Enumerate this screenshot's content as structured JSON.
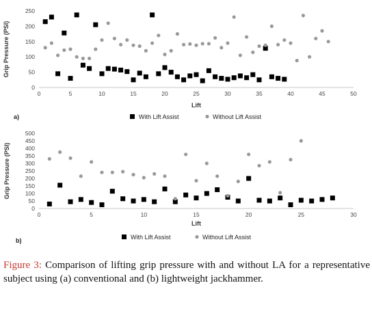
{
  "caption": {
    "title": "Figure 3:",
    "text": "Comparison of lifting grip pressure with and without LA for a representative subject using (a) conventional and (b) lightweight jackhammer."
  },
  "chart_data": [
    {
      "type": "scatter",
      "panel_label": "a)",
      "xlabel": "Lift",
      "ylabel": "Grip Pressure (PSI)",
      "xlim": [
        0,
        50
      ],
      "ylim": [
        0,
        250
      ],
      "xticks": [
        0,
        5,
        10,
        15,
        20,
        25,
        30,
        35,
        40,
        45,
        50
      ],
      "yticks": [
        0,
        50,
        100,
        150,
        200,
        250
      ],
      "grid": false,
      "legend_position": "bottom",
      "series": [
        {
          "name": "With Lift Assist",
          "color": "#000000",
          "marker": "square",
          "x": [
            1,
            2,
            3,
            4,
            5,
            6,
            7,
            8,
            9,
            10,
            11,
            12,
            13,
            14,
            15,
            16,
            17,
            18,
            19,
            20,
            21,
            22,
            23,
            24,
            25,
            26,
            27,
            28,
            29,
            30,
            31,
            32,
            33,
            34,
            35,
            36,
            37,
            38,
            39
          ],
          "y": [
            215,
            230,
            45,
            178,
            30,
            237,
            73,
            62,
            205,
            45,
            62,
            60,
            57,
            52,
            25,
            47,
            35,
            237,
            45,
            65,
            50,
            35,
            25,
            38,
            42,
            22,
            55,
            35,
            30,
            27,
            32,
            38,
            32,
            42,
            25,
            128,
            35,
            30,
            27
          ]
        },
        {
          "name": "Without Lift Assist",
          "color": "#999999",
          "marker": "circle",
          "x": [
            1,
            2,
            3,
            4,
            5,
            6,
            7,
            8,
            9,
            10,
            11,
            12,
            13,
            14,
            15,
            16,
            17,
            18,
            19,
            20,
            21,
            22,
            23,
            24,
            25,
            26,
            27,
            28,
            29,
            30,
            31,
            32,
            33,
            34,
            35,
            36,
            37,
            38,
            39,
            40,
            41,
            42,
            43,
            44,
            45,
            46
          ],
          "y": [
            130,
            145,
            105,
            122,
            125,
            100,
            95,
            95,
            125,
            155,
            210,
            160,
            140,
            155,
            138,
            135,
            120,
            145,
            170,
            108,
            120,
            175,
            140,
            142,
            138,
            143,
            143,
            162,
            130,
            145,
            230,
            105,
            165,
            115,
            135,
            138,
            200,
            140,
            155,
            145,
            88,
            235,
            100,
            160,
            185,
            150
          ]
        }
      ]
    },
    {
      "type": "scatter",
      "panel_label": "b)",
      "xlabel": "Lift",
      "ylabel": "Grip Pressure (PSI)",
      "xlim": [
        0,
        30
      ],
      "ylim": [
        0,
        500
      ],
      "xticks": [
        0,
        5,
        10,
        15,
        20,
        25,
        30
      ],
      "yticks": [
        0,
        50,
        100,
        150,
        200,
        250,
        300,
        350,
        400,
        450,
        500
      ],
      "grid": false,
      "legend_position": "bottom",
      "series": [
        {
          "name": "With Lift Assist",
          "color": "#000000",
          "marker": "square",
          "x": [
            1,
            2,
            3,
            4,
            5,
            6,
            7,
            8,
            9,
            10,
            11,
            12,
            13,
            14,
            15,
            16,
            17,
            18,
            19,
            20,
            21,
            22,
            23,
            24,
            25,
            26,
            27,
            28
          ],
          "y": [
            30,
            155,
            45,
            60,
            40,
            25,
            115,
            65,
            50,
            60,
            45,
            130,
            45,
            90,
            70,
            100,
            125,
            75,
            50,
            200,
            55,
            50,
            70,
            25,
            55,
            50,
            60,
            70
          ]
        },
        {
          "name": "Without Lift Assist",
          "color": "#999999",
          "marker": "circle",
          "x": [
            1,
            2,
            3,
            4,
            5,
            6,
            7,
            8,
            9,
            10,
            11,
            12,
            13,
            14,
            15,
            16,
            17,
            18,
            19,
            20,
            21,
            22,
            23,
            24,
            25
          ],
          "y": [
            330,
            375,
            335,
            215,
            310,
            240,
            240,
            245,
            225,
            205,
            230,
            215,
            65,
            360,
            185,
            300,
            215,
            85,
            180,
            360,
            285,
            310,
            105,
            325,
            450
          ]
        }
      ]
    }
  ]
}
